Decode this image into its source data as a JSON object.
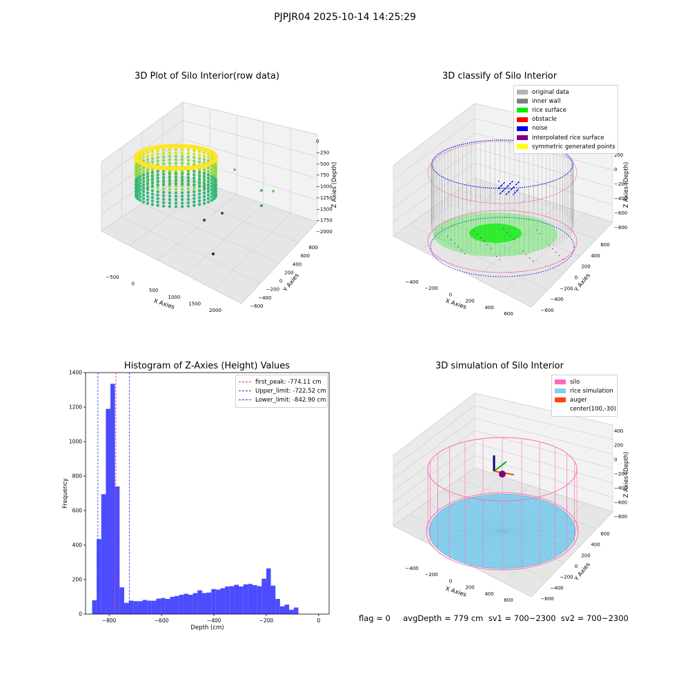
{
  "suptitle": "PJPJR04 2025-10-14 14:25:29",
  "status_text": "flag = 0     avgDepth = 779 cm  sv1 = 700~2300  sv2 = 700~2300",
  "colors": {
    "silo": "#ff69b4",
    "rice_sim": "#87ceeb",
    "auger": "#ff4500",
    "histogram_bar": "#4b4bff",
    "first_peak_line": "#e03030",
    "limit_line": "#2a2ae0",
    "original": "#b4b4b4",
    "inner_wall": "#808080",
    "rice_surface": "#00ee00",
    "obstacle": "#ff0000",
    "noise": "#0000ee",
    "interp_surface": "#800080",
    "symmetric": "#ffff00"
  },
  "panels": {
    "raw": {
      "title": "3D Plot of Silo Interior(row data)",
      "x_label": "X Axies",
      "y_label": "Y Axies",
      "z_label": "Z Axies (Depth)",
      "x_ticks": [
        "−500",
        "0",
        "500",
        "1000",
        "1500",
        "2000"
      ],
      "y_ticks": [
        "−600",
        "−400",
        "−200",
        "0",
        "200",
        "400",
        "600",
        "800"
      ],
      "z_ticks": [
        "0",
        "−250",
        "−500",
        "−750",
        "−1000",
        "−1250",
        "−1500",
        "−1750",
        "−2000"
      ]
    },
    "classify": {
      "title": "3D classify of Silo Interior",
      "x_label": "X Axies",
      "y_label": "Y Axies",
      "z_label": "Z Axies (Depth)",
      "x_ticks": [
        "−400",
        "−200",
        "0",
        "200",
        "400",
        "600"
      ],
      "y_ticks": [
        "−600",
        "−400",
        "−200",
        "0",
        "200",
        "400",
        "600"
      ],
      "z_ticks": [
        "200",
        "0",
        "−200",
        "−400",
        "−600",
        "−800"
      ],
      "legend": [
        {
          "label": "original data",
          "color": "#b4b4b4"
        },
        {
          "label": "inner wall",
          "color": "#808080"
        },
        {
          "label": "rice surface",
          "color": "#00ee00"
        },
        {
          "label": "obstacle",
          "color": "#ff0000"
        },
        {
          "label": "noise",
          "color": "#0000ee"
        },
        {
          "label": "interpolated rice surface",
          "color": "#800080"
        },
        {
          "label": "symmetric generated points",
          "color": "#ffff00"
        }
      ]
    },
    "simulation": {
      "title": "3D simulation of Silo Interior",
      "x_label": "X Axies",
      "y_label": "Y Axies",
      "z_label": "Z Axies (Depth)",
      "x_ticks": [
        "−400",
        "−200",
        "0",
        "200",
        "400",
        "600"
      ],
      "y_ticks": [
        "−600",
        "−400",
        "−200",
        "0",
        "200",
        "400",
        "600"
      ],
      "z_ticks": [
        "400",
        "200",
        "0",
        "−200",
        "−400",
        "−600",
        "−800"
      ],
      "legend": [
        {
          "label": "silo",
          "color": "#ff69b4"
        },
        {
          "label": "rice simulation",
          "color": "#87ceeb"
        },
        {
          "label": "auger",
          "color": "#ff4500"
        },
        {
          "label": "center(100,-30)",
          "color": ""
        }
      ]
    }
  },
  "chart_data": {
    "type": "bar",
    "title": "Histogram of Z-Axies (Height) Values",
    "xlabel": "Depth (cm)",
    "ylabel": "Frequency",
    "xlim": [
      -890,
      40
    ],
    "ylim": [
      0,
      1400
    ],
    "x_ticks": [
      -800,
      -600,
      -400,
      -200,
      0
    ],
    "x_tick_labels": [
      "−800",
      "−600",
      "−400",
      "−200",
      "0"
    ],
    "y_ticks": [
      0,
      200,
      400,
      600,
      800,
      1000,
      1200,
      1400
    ],
    "bin_start": -865,
    "bin_width": 17.5,
    "values": [
      80,
      435,
      695,
      1190,
      1335,
      740,
      155,
      65,
      78,
      75,
      75,
      82,
      78,
      78,
      90,
      93,
      88,
      100,
      105,
      112,
      118,
      112,
      122,
      138,
      122,
      125,
      145,
      142,
      150,
      160,
      162,
      170,
      160,
      172,
      175,
      168,
      162,
      205,
      265,
      165,
      88,
      45,
      55,
      25,
      38
    ],
    "vlines": [
      {
        "x": -774.11,
        "label": "first_peak: -774.11 cm",
        "color": "#e03030"
      },
      {
        "x": -722.52,
        "label": "Upper_limit: -722.52 cm",
        "color": "#2a2ae0"
      },
      {
        "x": -842.9,
        "label": "Lower_limit: -842.90 cm",
        "color": "#2a2ae0"
      }
    ],
    "legend_position": "top-right",
    "grid": false
  }
}
